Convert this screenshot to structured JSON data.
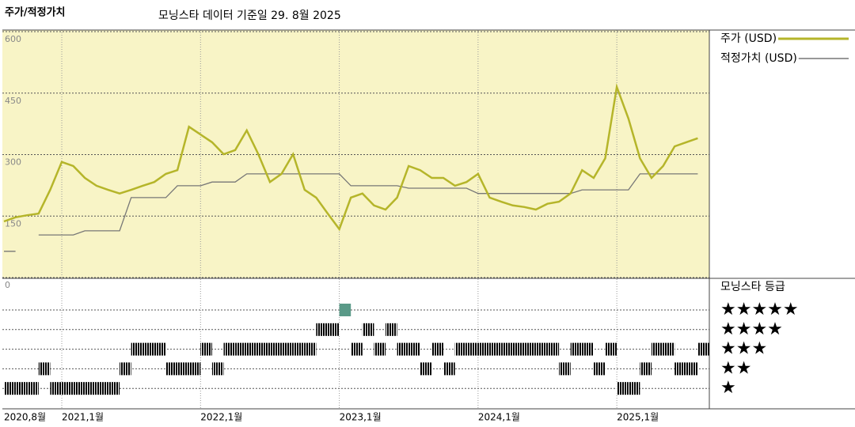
{
  "chart_data": {
    "type": "line",
    "title": "주가/적정가치",
    "subtitle": "모닝스타 데이터 기준일 29. 8월 2025",
    "x": [
      "2020-08",
      "2020-09",
      "2020-10",
      "2020-11",
      "2020-12",
      "2021-01",
      "2021-02",
      "2021-03",
      "2021-04",
      "2021-05",
      "2021-06",
      "2021-07",
      "2021-08",
      "2021-09",
      "2021-10",
      "2021-11",
      "2021-12",
      "2022-01",
      "2022-02",
      "2022-03",
      "2022-04",
      "2022-05",
      "2022-06",
      "2022-07",
      "2022-08",
      "2022-09",
      "2022-10",
      "2022-11",
      "2022-12",
      "2023-01",
      "2023-02",
      "2023-03",
      "2023-04",
      "2023-05",
      "2023-06",
      "2023-07",
      "2023-08",
      "2023-09",
      "2023-10",
      "2023-11",
      "2023-12",
      "2024-01",
      "2024-02",
      "2024-03",
      "2024-04",
      "2024-05",
      "2024-06",
      "2024-07",
      "2024-08",
      "2024-09",
      "2024-10",
      "2024-11",
      "2024-12",
      "2025-01",
      "2025-02",
      "2025-03",
      "2025-04",
      "2025-05",
      "2025-06",
      "2025-07",
      "2025-08"
    ],
    "xlim": [
      "2020-08",
      "2025-09"
    ],
    "xticks": [
      {
        "value": "2020-08",
        "label": "2020,8월"
      },
      {
        "value": "2021-01",
        "label": "2021,1월"
      },
      {
        "value": "2022-01",
        "label": "2022,1월"
      },
      {
        "value": "2023-01",
        "label": "2023,1월"
      },
      {
        "value": "2024-01",
        "label": "2024,1월"
      },
      {
        "value": "2025-01",
        "label": "2025,1월"
      }
    ],
    "ylim": [
      0,
      600
    ],
    "yticks": [
      0,
      150,
      300,
      450,
      600
    ],
    "grid": true,
    "series": [
      {
        "name": "주가 (USD)",
        "color": "#b5b52a",
        "values": [
          137,
          147,
          152,
          156,
          214,
          282,
          272,
          243,
          224,
          214,
          205,
          214,
          224,
          233,
          253,
          262,
          368,
          349,
          330,
          301,
          311,
          359,
          301,
          233,
          253,
          301,
          214,
          195,
          156,
          118,
          195,
          205,
          176,
          166,
          195,
          272,
          262,
          243,
          243,
          224,
          233,
          253,
          195,
          185,
          176,
          172,
          166,
          180,
          185,
          205,
          262,
          243,
          291,
          465,
          388,
          291,
          243,
          272,
          320,
          330,
          340
        ]
      },
      {
        "name": "적정가치 (USD)",
        "color": "#777777",
        "values": [
          64,
          64,
          null,
          104,
          104,
          104,
          104,
          114,
          114,
          114,
          114,
          195,
          195,
          195,
          195,
          224,
          224,
          224,
          233,
          233,
          233,
          253,
          253,
          253,
          253,
          253,
          253,
          253,
          253,
          253,
          224,
          224,
          224,
          224,
          224,
          218,
          218,
          218,
          218,
          218,
          218,
          205,
          205,
          205,
          205,
          205,
          205,
          205,
          205,
          205,
          214,
          214,
          214,
          214,
          214,
          253,
          253,
          253,
          253,
          253,
          253
        ]
      }
    ],
    "rating": {
      "title": "모닝스타 등급",
      "color": "#000000",
      "levels": [
        {
          "value": 5,
          "label": "★★★★★"
        },
        {
          "value": 4,
          "label": "★★★★"
        },
        {
          "value": 3,
          "label": "★★★"
        },
        {
          "value": 2,
          "label": "★★"
        },
        {
          "value": 1,
          "label": "★"
        }
      ],
      "values": [
        1,
        1,
        1,
        2,
        1,
        1,
        1,
        1,
        1,
        1,
        2,
        3,
        3,
        3,
        2,
        2,
        2,
        3,
        2,
        3,
        3,
        3,
        3,
        3,
        3,
        3,
        3,
        4,
        4,
        5,
        3,
        4,
        3,
        4,
        3,
        3,
        2,
        3,
        2,
        3,
        3,
        3,
        3,
        3,
        3,
        3,
        3,
        3,
        2,
        3,
        3,
        2,
        3,
        1,
        1,
        2,
        3,
        3,
        2,
        2,
        3
      ]
    }
  }
}
